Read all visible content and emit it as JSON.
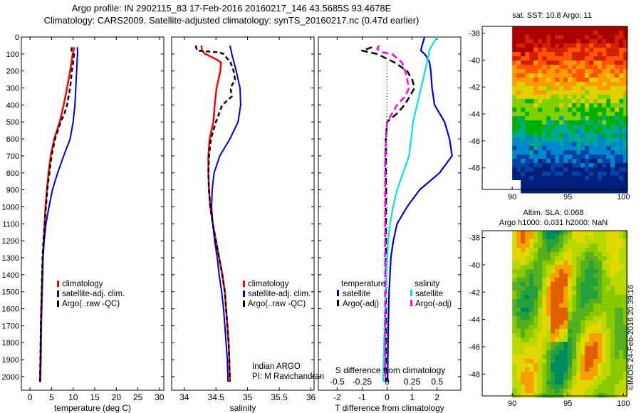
{
  "header": {
    "line1": "Argo profile: IN 2902115_83 17-Feb-2016 20160217_146 43.5685S 93.4678E",
    "line2": "Climatology: CARS2009. Satellite-adjusted climatology: synTS_20160217.nc (0.47d earlier)"
  },
  "colors": {
    "climatology": "#ff0000",
    "satellite": "#0000cc",
    "argo": "#000000",
    "sal_satellite": "#00e5e5",
    "sal_argo": "#ff00ff"
  },
  "depth_axis": {
    "ticks": [
      "0",
      "100",
      "200",
      "300",
      "400",
      "500",
      "600",
      "700",
      "800",
      "900",
      "1000",
      "1100",
      "1200",
      "1300",
      "1400",
      "1500",
      "1600",
      "1700",
      "1800",
      "1900",
      "2000"
    ],
    "range": [
      0,
      2080
    ]
  },
  "panels": {
    "temperature": {
      "xlabel": "temperature (deg C)",
      "xticks": [
        "0",
        "5",
        "10",
        "15",
        "20",
        "25",
        "30"
      ],
      "xrange": [
        -2,
        31
      ],
      "legend": [
        "climatology",
        "satellite-adj. clim.",
        "Argo(..raw -QC)"
      ]
    },
    "salinity": {
      "xlabel": "salinity",
      "xticks": [
        "34",
        "34.5",
        "35",
        "35.5",
        "36"
      ],
      "xrange": [
        33.8,
        36.05
      ],
      "legend": [
        "climatology",
        "satellite-adj. clim.",
        "Argo(..raw -QC)"
      ],
      "note1": "Indian ARGO",
      "note2": "PI: M Ravichandran"
    },
    "difference": {
      "xlabel": "T difference from climatology",
      "xticks": [
        "-2",
        "-1",
        "0",
        "1",
        "2"
      ],
      "xrange": [
        -2.75,
        2.95
      ],
      "s_title": "S difference from climatology",
      "s_ticks": [
        "-0.5",
        "-0.25",
        "0",
        "0.25",
        "0.5"
      ],
      "legend_temp_title": "temperature",
      "legend_sal_title": "salinity",
      "legend_temp": [
        "satellite",
        "Argo(-adj)"
      ],
      "legend_sal": [
        "satellite",
        "Argo(-adj)"
      ]
    },
    "sst_map": {
      "title": "sat. SST: 10.8 Argo: 11",
      "yticks": [
        "-38",
        "-40",
        "-42",
        "-44",
        "-46",
        "-48"
      ],
      "xticks": [
        "90",
        "95",
        "100"
      ]
    },
    "sla_map": {
      "title1": "Altim. SLA: 0.068",
      "title2": "Argo h1000: 0.031 h2000: NaN",
      "yticks": [
        "-38",
        "-40",
        "-42",
        "-44",
        "-46",
        "-48"
      ],
      "xticks": [
        "90",
        "95",
        "100"
      ]
    }
  },
  "credit": "©IMOS 24-Feb-2016 20:39:16",
  "chart_data": [
    {
      "type": "line",
      "xlabel": "temperature (deg C)",
      "ylabel": "",
      "xlim": [
        -2,
        31
      ],
      "ylim": [
        2080,
        0
      ],
      "series": [
        {
          "name": "climatology",
          "depth": [
            60,
            100,
            200,
            300,
            400,
            500,
            600,
            700,
            800,
            900,
            1000,
            1100,
            1200,
            1300,
            1500,
            1700,
            1900,
            2030
          ],
          "values": [
            10.3,
            9.9,
            9.3,
            8.6,
            7.8,
            6.9,
            5.6,
            4.8,
            4.3,
            3.9,
            3.6,
            3.4,
            3.2,
            3.0,
            2.8,
            2.6,
            2.5,
            2.4
          ]
        },
        {
          "name": "satellite-adj. clim.",
          "depth": [
            60,
            100,
            150,
            200,
            300,
            400,
            500,
            600,
            700,
            800,
            900,
            1000,
            1100,
            1200,
            1300,
            1500,
            1700,
            1900,
            2030
          ],
          "values": [
            11.0,
            11.0,
            10.9,
            10.8,
            10.6,
            10.4,
            10.0,
            9.3,
            7.8,
            6.4,
            5.2,
            4.4,
            3.7,
            3.3,
            3.0,
            2.7,
            2.5,
            2.4,
            2.3
          ]
        },
        {
          "name": "Argo(..raw -QC)",
          "depth": [
            60,
            80,
            100,
            150,
            200,
            300,
            400,
            450,
            500,
            600,
            700,
            800,
            900,
            1000,
            1100,
            1200,
            1300,
            1500,
            1700,
            1900,
            2030
          ],
          "values": [
            9.7,
            9.6,
            10.2,
            10.0,
            9.7,
            9.3,
            8.6,
            8.0,
            7.1,
            5.8,
            5.0,
            4.5,
            4.0,
            3.7,
            3.4,
            3.1,
            2.9,
            2.7,
            2.5,
            2.4,
            2.3
          ]
        }
      ]
    },
    {
      "type": "line",
      "xlabel": "salinity",
      "ylabel": "",
      "xlim": [
        33.8,
        36.05
      ],
      "ylim": [
        2080,
        0
      ],
      "series": [
        {
          "name": "climatology",
          "depth": [
            50,
            80,
            100,
            130,
            150,
            200,
            300,
            400,
            500,
            600,
            700,
            800,
            900,
            1000,
            1100,
            1200,
            1300,
            1400,
            1500,
            1600,
            1700,
            1800,
            1900,
            2030
          ],
          "values": [
            34.27,
            34.28,
            34.33,
            34.5,
            34.58,
            34.57,
            34.51,
            34.48,
            34.46,
            34.4,
            34.38,
            34.38,
            34.39,
            34.41,
            34.45,
            34.5,
            34.55,
            34.6,
            34.64,
            34.66,
            34.68,
            34.7,
            34.71,
            34.72
          ]
        },
        {
          "name": "satellite-adj. clim.",
          "depth": [
            50,
            80,
            100,
            200,
            300,
            400,
            500,
            600,
            700,
            800,
            900,
            1000,
            1100,
            1200,
            1300,
            1400,
            1500,
            1600,
            1700,
            1800,
            1900,
            2030
          ],
          "values": [
            34.72,
            34.74,
            34.75,
            34.82,
            34.88,
            34.89,
            34.85,
            34.72,
            34.56,
            34.47,
            34.44,
            34.43,
            34.45,
            34.48,
            34.52,
            34.55,
            34.59,
            34.62,
            34.64,
            34.66,
            34.68,
            34.69
          ]
        },
        {
          "name": "Argo(..raw -QC)",
          "depth": [
            50,
            80,
            90,
            100,
            150,
            200,
            250,
            300,
            350,
            400,
            500,
            600,
            700,
            800,
            900,
            1000,
            1100,
            1200,
            1300,
            1400,
            1500,
            1600,
            1700,
            1800,
            1900,
            2030
          ],
          "values": [
            34.18,
            34.2,
            34.55,
            34.62,
            34.73,
            34.78,
            34.8,
            34.73,
            34.75,
            34.6,
            34.5,
            34.42,
            34.39,
            34.38,
            34.39,
            34.41,
            34.45,
            34.5,
            34.55,
            34.6,
            34.64,
            34.66,
            34.68,
            34.7,
            34.71,
            34.72
          ]
        }
      ]
    },
    {
      "type": "line",
      "xlabel": "T difference from climatology",
      "ylabel": "",
      "xlim": [
        -2.75,
        2.95
      ],
      "ylim": [
        2080,
        0
      ],
      "series": [
        {
          "name": "temperature satellite",
          "depth": [
            0,
            50,
            80,
            100,
            120,
            150,
            200,
            300,
            400,
            500,
            600,
            700,
            800,
            900,
            1000,
            1100,
            1200,
            1300,
            1500,
            1700,
            1900,
            2030
          ],
          "values": [
            1.5,
            1.4,
            1.35,
            1.5,
            1.6,
            1.7,
            1.75,
            1.8,
            1.9,
            2.3,
            2.5,
            2.6,
            2.1,
            1.3,
            0.8,
            0.4,
            0.25,
            0.15,
            0.08,
            0.05,
            0.03,
            0.02
          ]
        },
        {
          "name": "temperature Argo(-adj)",
          "depth": [
            60,
            80,
            100,
            150,
            200,
            250,
            300,
            350,
            400,
            450,
            500,
            600,
            700,
            800,
            900,
            1000,
            1200,
            1400,
            1600,
            1800,
            2030
          ],
          "values": [
            -0.6,
            -1.0,
            -0.4,
            0.3,
            0.8,
            1.0,
            1.1,
            0.9,
            0.7,
            0.4,
            0.0,
            -0.05,
            -0.05,
            -0.05,
            -0.04,
            -0.05,
            -0.05,
            -0.05,
            -0.05,
            -0.05,
            -0.05
          ]
        },
        {
          "name": "salinity satellite",
          "depth": [
            0,
            50,
            80,
            100,
            150,
            200,
            300,
            400,
            500,
            600,
            700,
            800,
            900,
            1000,
            1100,
            1200,
            1300,
            1400,
            1600,
            1800,
            2030
          ],
          "values": [
            0.5,
            0.45,
            0.42,
            0.42,
            0.4,
            0.38,
            0.34,
            0.3,
            0.26,
            0.24,
            0.22,
            0.16,
            0.1,
            0.06,
            0.03,
            0.01,
            0.0,
            -0.01,
            -0.02,
            -0.03,
            -0.04
          ]
        },
        {
          "name": "salinity Argo(-adj)",
          "depth": [
            50,
            70,
            90,
            100,
            150,
            200,
            250,
            300,
            350,
            400,
            450,
            500,
            600,
            700,
            800,
            900,
            1000,
            1200,
            1400,
            1600,
            1800,
            2030
          ],
          "values": [
            -0.08,
            -0.1,
            -0.05,
            0.05,
            0.15,
            0.18,
            0.2,
            0.22,
            0.18,
            0.1,
            0.05,
            0.0,
            -0.01,
            -0.02,
            -0.02,
            -0.02,
            -0.02,
            -0.02,
            -0.02,
            -0.02,
            -0.02,
            -0.02
          ]
        }
      ]
    }
  ]
}
